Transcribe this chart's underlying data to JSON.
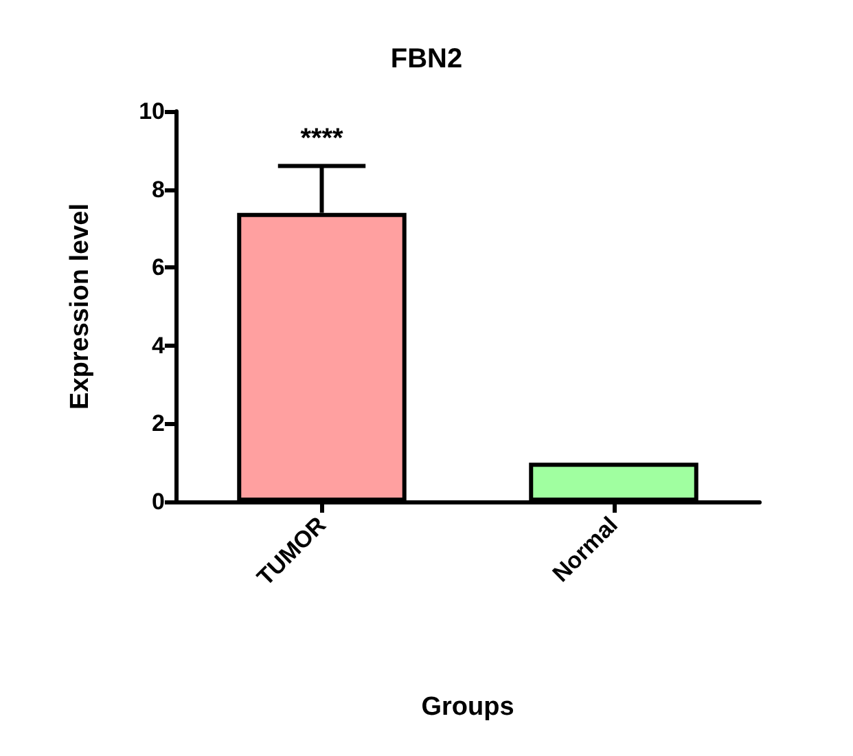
{
  "chart_data": {
    "type": "bar",
    "title": "FBN2",
    "xlabel": "Groups",
    "ylabel": "Expression level",
    "categories": [
      "TUMOR",
      "Normal"
    ],
    "values": [
      7.4,
      1.0
    ],
    "colors": [
      "#ffa0a0",
      "#a0ffa0"
    ],
    "errors": [
      [
        7.4,
        8.6
      ],
      null
    ],
    "ylim": [
      0,
      10
    ],
    "yticks": [
      0,
      2,
      4,
      6,
      8,
      10
    ],
    "annotations": [
      {
        "text": "****",
        "x": "TUMOR",
        "y": 8.6
      }
    ]
  }
}
